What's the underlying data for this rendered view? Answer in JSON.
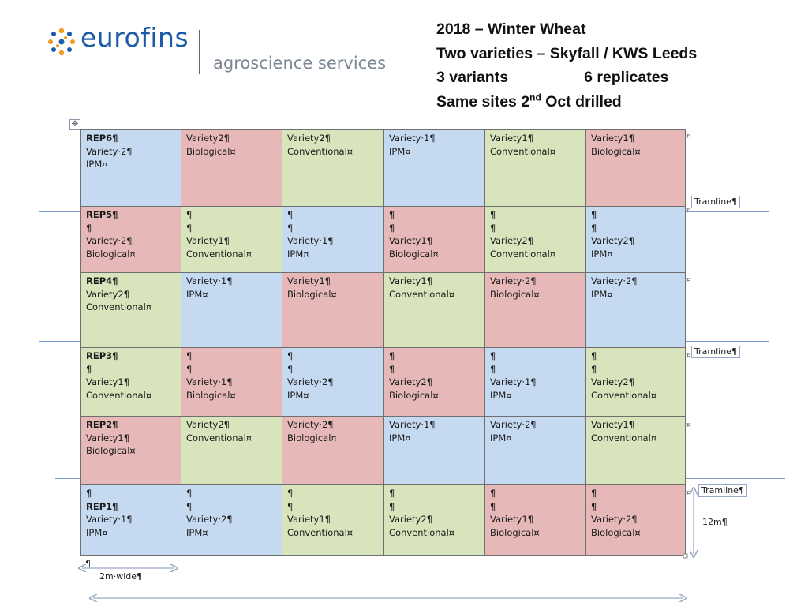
{
  "logo": {
    "brand": "eurofins",
    "sub": "agroscience services"
  },
  "title": {
    "line1": "2018 – Winter Wheat",
    "line2": "Two varieties – Skyfall / KWS Leeds",
    "line3a": "3 variants",
    "line3b": "6 replicates",
    "line4a": "Same sites 2",
    "line4sup": "nd",
    "line4b": " Oct drilled"
  },
  "grid_handle": "✥",
  "colors": {
    "IPM": "#c5d9f1",
    "Biological": "#e6b9b8",
    "Conventional": "#d7e4bc",
    "border": "#6f6f6f",
    "tramline": "#7a9ad6"
  },
  "rows": [
    {
      "cells": [
        {
          "lines": [
            "REP6¶",
            "Variety·2¶",
            "IPM¤"
          ],
          "treatment": "IPM",
          "rep": true
        },
        {
          "lines": [
            "Variety2¶",
            "Biological¤"
          ],
          "treatment": "Biological"
        },
        {
          "lines": [
            "Variety2¶",
            "Conventional¤"
          ],
          "treatment": "Conventional"
        },
        {
          "lines": [
            "Variety·1¶",
            "IPM¤"
          ],
          "treatment": "IPM"
        },
        {
          "lines": [
            "Variety1¶",
            "Conventional¤"
          ],
          "treatment": "Conventional"
        },
        {
          "lines": [
            "Variety1¶",
            "Biological¤"
          ],
          "treatment": "Biological"
        }
      ]
    },
    {
      "cells": [
        {
          "lines": [
            "REP5¶",
            "¶",
            "Variety·2¶",
            "Biological¤"
          ],
          "treatment": "Biological",
          "rep": true
        },
        {
          "lines": [
            "¶",
            "¶",
            "Variety1¶",
            "Conventional¤"
          ],
          "treatment": "Conventional"
        },
        {
          "lines": [
            "¶",
            "¶",
            "Variety·1¶",
            "IPM¤"
          ],
          "treatment": "IPM"
        },
        {
          "lines": [
            "¶",
            "¶",
            "Variety1¶",
            "Biological¤"
          ],
          "treatment": "Biological"
        },
        {
          "lines": [
            "¶",
            "¶",
            "Variety2¶",
            "Conventional¤"
          ],
          "treatment": "Conventional"
        },
        {
          "lines": [
            "¶",
            "¶",
            "Variety2¶",
            "IPM¤"
          ],
          "treatment": "IPM"
        }
      ]
    },
    {
      "cells": [
        {
          "lines": [
            "REP4¶",
            "Variety2¶",
            "Conventional¤"
          ],
          "treatment": "Conventional",
          "rep": true
        },
        {
          "lines": [
            "Variety·1¶",
            "IPM¤"
          ],
          "treatment": "IPM"
        },
        {
          "lines": [
            "Variety1¶",
            "Biological¤"
          ],
          "treatment": "Biological"
        },
        {
          "lines": [
            "Variety1¶",
            "Conventional¤"
          ],
          "treatment": "Conventional"
        },
        {
          "lines": [
            "Variety·2¶",
            "Biological¤"
          ],
          "treatment": "Biological"
        },
        {
          "lines": [
            "Variety·2¶",
            "IPM¤"
          ],
          "treatment": "IPM"
        }
      ]
    },
    {
      "cells": [
        {
          "lines": [
            "REP3¶",
            "¶",
            "Variety1¶",
            "Conventional¤"
          ],
          "treatment": "Conventional",
          "rep": true
        },
        {
          "lines": [
            "¶",
            "¶",
            "Variety·1¶",
            "Biological¤"
          ],
          "treatment": "Biological"
        },
        {
          "lines": [
            "¶",
            "¶",
            "Variety·2¶",
            "IPM¤"
          ],
          "treatment": "IPM"
        },
        {
          "lines": [
            "¶",
            "¶",
            "Variety2¶",
            "Biological¤"
          ],
          "treatment": "Biological"
        },
        {
          "lines": [
            "¶",
            "¶",
            "Variety·1¶",
            "IPM¤"
          ],
          "treatment": "IPM"
        },
        {
          "lines": [
            "¶",
            "¶",
            "Variety2¶",
            "Conventional¤"
          ],
          "treatment": "Conventional"
        }
      ]
    },
    {
      "cells": [
        {
          "lines": [
            "REP2¶",
            "Variety1¶",
            "Biological¤"
          ],
          "treatment": "Biological",
          "rep": true
        },
        {
          "lines": [
            "Variety2¶",
            "Conventional¤"
          ],
          "treatment": "Conventional"
        },
        {
          "lines": [
            "Variety·2¶",
            "Biological¤"
          ],
          "treatment": "Biological"
        },
        {
          "lines": [
            "Variety·1¶",
            "IPM¤"
          ],
          "treatment": "IPM"
        },
        {
          "lines": [
            "Variety·2¶",
            "IPM¤"
          ],
          "treatment": "IPM"
        },
        {
          "lines": [
            "Variety1¶",
            "Conventional¤"
          ],
          "treatment": "Conventional"
        }
      ]
    },
    {
      "cells": [
        {
          "lines": [
            "¶",
            "REP1¶",
            "Variety·1¶",
            "IPM¤"
          ],
          "treatment": "IPM",
          "rep": true
        },
        {
          "lines": [
            "¶",
            "¶",
            "Variety·2¶",
            "IPM¤"
          ],
          "treatment": "IPM"
        },
        {
          "lines": [
            "¶",
            "¶",
            "Variety1¶",
            "Conventional¤"
          ],
          "treatment": "Conventional"
        },
        {
          "lines": [
            "¶",
            "¶",
            "Variety2¶",
            "Conventional¤"
          ],
          "treatment": "Conventional"
        },
        {
          "lines": [
            "¶",
            "¶",
            "Variety1¶",
            "Biological¤"
          ],
          "treatment": "Biological"
        },
        {
          "lines": [
            "¶",
            "¶",
            "Variety·2¶",
            "Biological¤"
          ],
          "treatment": "Biological"
        }
      ]
    }
  ],
  "end_marks": [
    "¤",
    "¤",
    "¤",
    "¤",
    "¤",
    "¤"
  ],
  "tramlines": [
    "Tramline¶",
    "Tramline¶",
    "Tramline¶"
  ],
  "dimensions": {
    "height": "12m¶",
    "width": "2m·wide¶",
    "para": "¶"
  }
}
